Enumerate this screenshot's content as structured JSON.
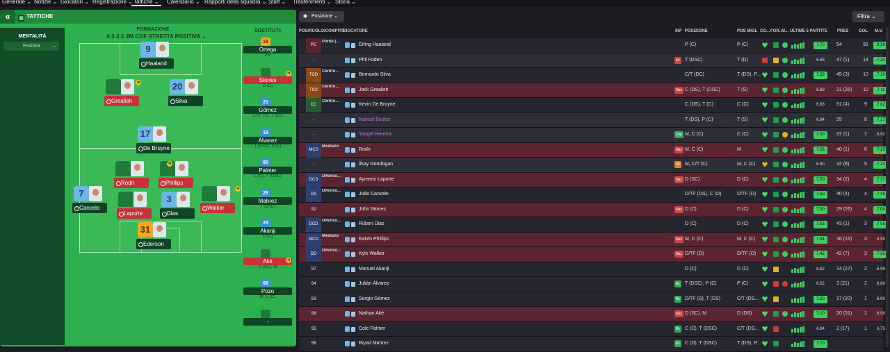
{
  "nav": [
    "Generale",
    "Notizie",
    "Giocatori",
    "Registrazione",
    "Tattiche",
    "Calendario",
    "Rapporti della squadra",
    "Staff",
    "Trasferimenti",
    "Storia"
  ],
  "left": {
    "section": "TATTICHE",
    "mentalita_label": "MENTALITÀ",
    "mentalita_value": "Positiva",
    "formation_label": "FORMAZIONE",
    "formation_name": "4-3-2-1 2M COF STRETTA POSITIVA",
    "subs_label": "SOSTITUTI:"
  },
  "pitch_players": [
    {
      "num": "9",
      "name": "Haaland",
      "shirt": "sky",
      "nameStyle": "dark"
    },
    {
      "num": "",
      "name": "Grealish",
      "shirt": "ghost",
      "nameStyle": "red"
    },
    {
      "num": "20",
      "name": "Silva",
      "shirt": "sky",
      "nameStyle": "dark"
    },
    {
      "num": "17",
      "name": "De Bruyne",
      "shirt": "sky",
      "nameStyle": "dark"
    },
    {
      "num": "",
      "name": "Rodri",
      "shirt": "ghost",
      "nameStyle": "red"
    },
    {
      "num": "",
      "name": "Phillips",
      "shirt": "ghost",
      "nameStyle": "red"
    },
    {
      "num": "7",
      "name": "Cancelo",
      "shirt": "sky",
      "nameStyle": "dark"
    },
    {
      "num": "",
      "name": "Laporte",
      "shirt": "ghost",
      "nameStyle": "red"
    },
    {
      "num": "3",
      "name": "Dias",
      "shirt": "sky",
      "nameStyle": "dark"
    },
    {
      "num": "",
      "name": "Walker",
      "shirt": "ghost",
      "nameStyle": "red"
    },
    {
      "num": "31",
      "name": "Ederson",
      "shirt": "gk",
      "nameStyle": "dark"
    }
  ],
  "subs": [
    {
      "num": "18",
      "name": "Ortega",
      "pos": "Por",
      "kind": "orange",
      "red": false
    },
    {
      "num": "",
      "name": "Stones",
      "pos": "D (C)",
      "kind": "green",
      "red": true
    },
    {
      "num": "21",
      "name": "Gómez",
      "pos": "D/TF (S), T (DS)",
      "kind": "blue",
      "red": false
    },
    {
      "num": "19",
      "name": "Álvarez",
      "pos": "T (DSC), P (C)",
      "kind": "blue",
      "red": false
    },
    {
      "num": "80",
      "name": "Palmer",
      "pos": "C (C), T (DSC)",
      "kind": "blue",
      "red": false
    },
    {
      "num": "26",
      "name": "Mahrez",
      "pos": "T (DSC)",
      "kind": "blue",
      "red": false
    },
    {
      "num": "25",
      "name": "Akanji",
      "pos": "D (C)",
      "kind": "blue",
      "red": false
    },
    {
      "num": "",
      "name": "Aké",
      "pos": "D (SC), M",
      "kind": "green",
      "red": true
    },
    {
      "num": "66",
      "name": "Pozo",
      "pos": "M, C (C)",
      "kind": "blue",
      "red": false
    },
    {
      "num": "",
      "name": "-",
      "pos": "",
      "kind": "green",
      "red": false
    }
  ],
  "right": {
    "pos_button": "Posizione",
    "filter_button": "Filtra",
    "columns": [
      "POS/RUOLO/COMPITO",
      "GIOCATORE",
      "INF",
      "POSIZIONE",
      "POS MIGL",
      "CO...",
      "FOR...",
      "M...",
      "ULTIME 5 PARTITE",
      "PRES",
      "GOL",
      "M.V."
    ],
    "rows": [
      {
        "pos": "PC",
        "role": "Punta (...",
        "name": "Erling Haaland",
        "inf": "",
        "infc": "",
        "posizione": "P (C)",
        "posmigl": "P (C)",
        "rat": "7.70",
        "pres": "54",
        "gol": "91",
        "mv": "8.36",
        "style": "dark",
        "heart": "b",
        "fit": "g",
        "up": "g",
        "purple": false,
        "ratg": true,
        "mvg": true
      },
      {
        "pos": "-",
        "role": "",
        "name": "Phil Foden",
        "inf": "Inf",
        "infc": "red",
        "posizione": "T (DSC)",
        "posmigl": "T (D)",
        "rat": "6.88",
        "pres": "47 (1)",
        "gol": "14",
        "mv": "7.20",
        "style": "gray",
        "heart": "r",
        "fit": "y",
        "up": "g",
        "purple": false,
        "ratg": false,
        "mvg": true
      },
      {
        "pos": "TCD",
        "role": "Centro...",
        "name": "Bernardo Silva",
        "inf": "",
        "infc": "",
        "posizione": "C/T (DC)",
        "posmigl": "T (DS), P...",
        "rat": "7.33",
        "pres": "45 (3)",
        "gol": "10",
        "mv": "7.20",
        "style": "dark",
        "heart": "b",
        "fit": "g",
        "up": "g",
        "purple": false,
        "ratg": true,
        "mvg": true
      },
      {
        "pos": "TCS",
        "role": "Centro...",
        "name": "Jack Grealish",
        "inf": "Naz",
        "infc": "red",
        "posizione": "C (DS), T (DSC)",
        "posmigl": "T (S)",
        "rat": "6.88",
        "pres": "21 (35)",
        "gol": "10",
        "mv": "7.11",
        "style": "red",
        "heart": "b",
        "fit": "g",
        "up": "g",
        "purple": false,
        "ratg": false,
        "mvg": true
      },
      {
        "pos": "CC",
        "role": "Centro...",
        "name": "Kevin De Bruyne",
        "inf": "",
        "infc": "",
        "posizione": "C (DS), T (C)",
        "posmigl": "C (C)",
        "rat": "6.98",
        "pres": "51 (4)",
        "gol": "9",
        "mv": "7.02",
        "style": "dark",
        "heart": "b",
        "fit": "g",
        "up": "g",
        "purple": false,
        "ratg": false,
        "mvg": true
      },
      {
        "pos": "-",
        "role": "",
        "name": "Nahuel Bustos",
        "inf": "",
        "infc": "",
        "posizione": "T (DS), P (C)",
        "posmigl": "T (S)",
        "rat": "6.84",
        "pres": "25",
        "gol": "8",
        "mv": "7.17",
        "style": "gray",
        "heart": "b",
        "fit": "g",
        "up": "g",
        "purple": true,
        "ratg": false,
        "mvg": true
      },
      {
        "pos": "-",
        "role": "",
        "name": "Yangel Herrera",
        "inf": "Dsp",
        "infc": "green",
        "posizione": "M, C (C)",
        "posmigl": "C (C)",
        "rat": "7.00",
        "pres": "37 (1)",
        "gol": "7",
        "mv": "6.92",
        "style": "gray",
        "heart": "b",
        "fit": "g",
        "up": "y",
        "purple": true,
        "ratg": true,
        "mvg": false
      },
      {
        "pos": "MCS",
        "role": "Mediano",
        "name": "Rodri",
        "inf": "Naz",
        "infc": "red",
        "posizione": "M, C (C)",
        "posmigl": "M",
        "rat": "7.06",
        "pres": "40 (1)",
        "gol": "6",
        "mv": "7.23",
        "style": "red",
        "heart": "b",
        "fit": "g",
        "up": "g",
        "purple": false,
        "ratg": true,
        "mvg": true
      },
      {
        "pos": "-",
        "role": "",
        "name": "İlkay Gündogan",
        "inf": "Inf",
        "infc": "orange",
        "posizione": "M, C/T (C)",
        "posmigl": "M, C (C)",
        "rat": "6.90",
        "pres": "32 (8)",
        "gol": "5",
        "mv": "7.23",
        "style": "gray",
        "heart": "y",
        "fit": "g",
        "up": "g",
        "purple": false,
        "ratg": false,
        "mvg": true
      },
      {
        "pos": "DCS",
        "role": "Difenso...",
        "name": "Aymeric Laporte",
        "inf": "Naz",
        "infc": "red",
        "posizione": "D (SC)",
        "posmigl": "D (C)",
        "rat": "7.50",
        "pres": "34 (2)",
        "gol": "4",
        "mv": "7.17",
        "style": "red",
        "heart": "b",
        "fit": "g",
        "up": "g",
        "purple": false,
        "ratg": true,
        "mvg": true
      },
      {
        "pos": "DS",
        "role": "Difenso...",
        "name": "João Cancelo",
        "inf": "",
        "infc": "",
        "posizione": "D/TF (DS), C (D)",
        "posmigl": "D/TF (D)",
        "rat": "7.50",
        "pres": "40 (4)",
        "gol": "4",
        "mv": "7.35",
        "style": "dark",
        "heart": "b",
        "fit": "g",
        "up": "g",
        "purple": false,
        "ratg": true,
        "mvg": true
      },
      {
        "pos": "S2",
        "role": "",
        "name": "John Stones",
        "inf": "Naz",
        "infc": "red",
        "posizione": "D (C)",
        "posmigl": "D (C)",
        "rat": "7.00",
        "pres": "29 (26)",
        "gol": "4",
        "mv": "7.09",
        "style": "red",
        "heart": "b",
        "fit": "g",
        "up": "g",
        "purple": false,
        "ratg": true,
        "mvg": true
      },
      {
        "pos": "DCD",
        "role": "Difenso...",
        "name": "Rúben Dias",
        "inf": "",
        "infc": "",
        "posizione": "D (C)",
        "posmigl": "D (C)",
        "rat": "7.03",
        "pres": "43 (1)",
        "gol": "3",
        "mv": "7.05",
        "style": "dark",
        "heart": "b",
        "fit": "g",
        "up": "g",
        "purple": false,
        "ratg": true,
        "mvg": true
      },
      {
        "pos": "MCD",
        "role": "Mediano",
        "name": "Kalvin Phillips",
        "inf": "Naz",
        "infc": "red",
        "posizione": "M, C (C)",
        "posmigl": "M, C (C)",
        "rat": "7.34",
        "pres": "36 (16)",
        "gol": "3",
        "mv": "6.99",
        "style": "red",
        "heart": "b",
        "fit": "g",
        "up": "g",
        "purple": false,
        "ratg": true,
        "mvg": false
      },
      {
        "pos": "DD",
        "role": "Difenso...",
        "name": "Kyle Walker",
        "inf": "Naz",
        "infc": "red",
        "posizione": "D/TF (D)",
        "posmigl": "D/TF (D)",
        "rat": "7.42",
        "pres": "42 (7)",
        "gol": "3",
        "mv": "7.35",
        "style": "red",
        "heart": "b",
        "fit": "g",
        "up": "g",
        "purple": false,
        "ratg": true,
        "mvg": true
      },
      {
        "pos": "S7",
        "role": "",
        "name": "Manuel Akanji",
        "inf": "",
        "infc": "",
        "posizione": "D (C)",
        "posmigl": "D (C)",
        "rat": "6.92",
        "pres": "14 (27)",
        "gol": "2",
        "mv": "6.99",
        "style": "dark",
        "heart": "b",
        "fit": "y",
        "up": "",
        "purple": false,
        "ratg": false,
        "mvg": false
      },
      {
        "pos": "S4",
        "role": "",
        "name": "Julián Álvarez",
        "inf": "Rc",
        "infc": "green",
        "posizione": "T (DSC), P (C)",
        "posmigl": "P (C)",
        "rat": "6.52",
        "pres": "3 (21)",
        "gol": "2",
        "mv": "6.86",
        "style": "dark",
        "heart": "b",
        "fit": "r",
        "up": "r",
        "purple": false,
        "ratg": false,
        "mvg": false
      },
      {
        "pos": "S3",
        "role": "",
        "name": "Sergio Gómez",
        "inf": "Rc",
        "infc": "green",
        "posizione": "D/TF (S), T (DS)",
        "posmigl": "C/T (DS...",
        "rat": "7.00",
        "pres": "17 (20)",
        "gol": "1",
        "mv": "6.99",
        "style": "dark",
        "heart": "b",
        "fit": "y",
        "up": "",
        "purple": false,
        "ratg": true,
        "mvg": false
      },
      {
        "pos": "S8",
        "role": "",
        "name": "Nathan Aké",
        "inf": "Naz",
        "infc": "red",
        "posizione": "D (SC), M",
        "posmigl": "D (DS)",
        "rat": "7.10",
        "pres": "20 (31)",
        "gol": "1",
        "mv": "6.99",
        "style": "red",
        "heart": "b",
        "fit": "g",
        "up": "g",
        "purple": false,
        "ratg": true,
        "mvg": false
      },
      {
        "pos": "S5",
        "role": "",
        "name": "Cole Palmer",
        "inf": "Rc",
        "infc": "green",
        "posizione": "C (C), T (DSC)",
        "posmigl": "C/T (DS...",
        "rat": "6.94",
        "pres": "2 (17)",
        "gol": "1",
        "mv": "6.75",
        "style": "dark",
        "heart": "b",
        "fit": "r",
        "up": "",
        "purple": false,
        "ratg": false,
        "mvg": false
      },
      {
        "pos": "S6",
        "role": "",
        "name": "Riyad Mahrez",
        "inf": "Rc",
        "infc": "green",
        "posizione": "C (D), T (DSC)",
        "posmigl": "T (DS), P...",
        "rat": "7.10",
        "pres": "",
        "gol": "",
        "mv": "",
        "style": "dark",
        "heart": "b",
        "fit": "g",
        "up": "",
        "purple": false,
        "ratg": true,
        "mvg": false
      }
    ]
  }
}
